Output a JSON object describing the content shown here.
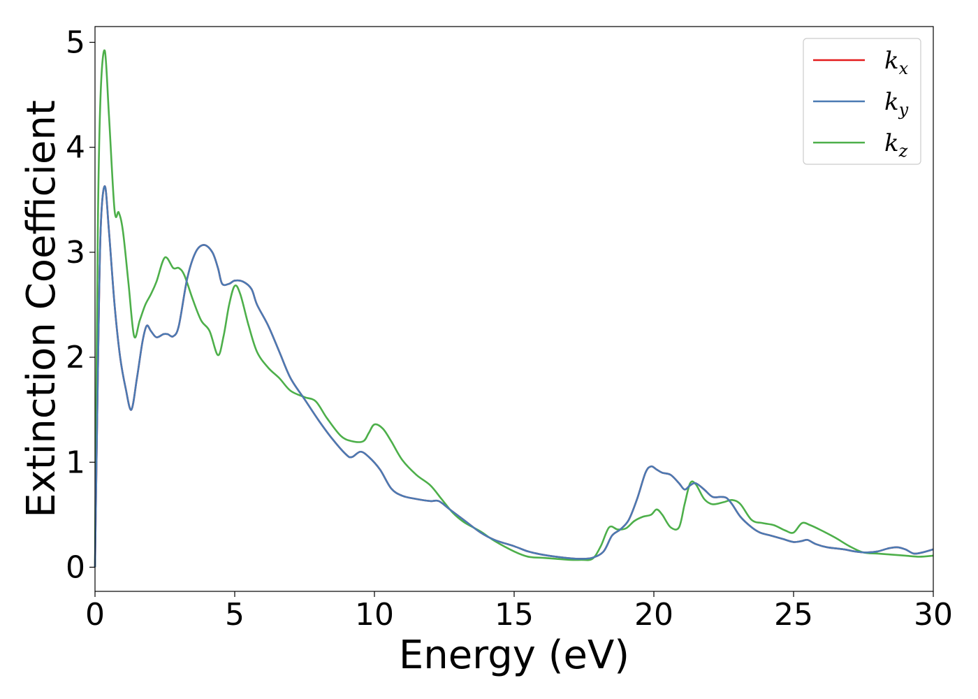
{
  "chart_data": {
    "type": "line",
    "title": "",
    "xlabel": "Energy (eV)",
    "ylabel": "Extinction Coefficient",
    "xlim": [
      0,
      30
    ],
    "ylim": [
      -0.23,
      5.15
    ],
    "xticks": [
      0,
      5,
      10,
      15,
      20,
      25,
      30
    ],
    "yticks": [
      0,
      1,
      2,
      3,
      4,
      5
    ],
    "grid": false,
    "legend": {
      "position": "top-right"
    },
    "series": [
      {
        "name": "k_x",
        "label_main": "k",
        "label_sub": "x",
        "color": "#e41a1c",
        "x": [
          0,
          0.1,
          0.2,
          0.35,
          0.5,
          0.7,
          0.9,
          1.1,
          1.3,
          1.5,
          1.7,
          1.85,
          2.0,
          2.2,
          2.45,
          2.6,
          2.8,
          3.0,
          3.3,
          3.6,
          3.9,
          4.2,
          4.4,
          4.55,
          4.8,
          5.0,
          5.3,
          5.6,
          5.8,
          6.2,
          6.6,
          7.0,
          7.5,
          8.0,
          8.5,
          9.0,
          9.2,
          9.5,
          9.8,
          10.2,
          10.6,
          11.0,
          11.5,
          12.0,
          12.3,
          12.7,
          13.2,
          13.8,
          14.3,
          15.0,
          15.5,
          16.0,
          16.5,
          17.0,
          17.4,
          17.8,
          18.2,
          18.5,
          18.8,
          19.1,
          19.4,
          19.7,
          19.9,
          20.1,
          20.3,
          20.6,
          20.9,
          21.1,
          21.3,
          21.5,
          21.8,
          22.1,
          22.4,
          22.6,
          22.8,
          23.1,
          23.5,
          23.8,
          24.2,
          24.6,
          25.0,
          25.3,
          25.5,
          25.8,
          26.2,
          26.8,
          27.2,
          27.6,
          28.0,
          28.4,
          28.7,
          29.0,
          29.3,
          29.6,
          30.0
        ],
        "y": [
          0,
          1.8,
          3.2,
          3.63,
          3.2,
          2.5,
          2.0,
          1.7,
          1.5,
          1.8,
          2.15,
          2.3,
          2.25,
          2.19,
          2.22,
          2.22,
          2.2,
          2.3,
          2.75,
          3.0,
          3.07,
          3.0,
          2.85,
          2.7,
          2.7,
          2.73,
          2.72,
          2.65,
          2.5,
          2.3,
          2.05,
          1.8,
          1.6,
          1.4,
          1.22,
          1.07,
          1.05,
          1.1,
          1.05,
          0.93,
          0.75,
          0.68,
          0.65,
          0.63,
          0.63,
          0.55,
          0.45,
          0.33,
          0.26,
          0.2,
          0.15,
          0.12,
          0.1,
          0.085,
          0.08,
          0.09,
          0.15,
          0.3,
          0.36,
          0.45,
          0.65,
          0.9,
          0.96,
          0.93,
          0.9,
          0.88,
          0.8,
          0.74,
          0.78,
          0.8,
          0.74,
          0.67,
          0.67,
          0.66,
          0.6,
          0.48,
          0.38,
          0.33,
          0.3,
          0.27,
          0.24,
          0.25,
          0.26,
          0.22,
          0.19,
          0.17,
          0.15,
          0.14,
          0.15,
          0.18,
          0.19,
          0.17,
          0.13,
          0.14,
          0.17
        ]
      },
      {
        "name": "k_y",
        "label_main": "k",
        "label_sub": "y",
        "color": "#4a7ab3",
        "x": [
          0,
          0.1,
          0.2,
          0.35,
          0.5,
          0.7,
          0.9,
          1.1,
          1.3,
          1.5,
          1.7,
          1.85,
          2.0,
          2.2,
          2.45,
          2.6,
          2.8,
          3.0,
          3.3,
          3.6,
          3.9,
          4.2,
          4.4,
          4.55,
          4.8,
          5.0,
          5.3,
          5.6,
          5.8,
          6.2,
          6.6,
          7.0,
          7.5,
          8.0,
          8.5,
          9.0,
          9.2,
          9.5,
          9.8,
          10.2,
          10.6,
          11.0,
          11.5,
          12.0,
          12.3,
          12.7,
          13.2,
          13.8,
          14.3,
          15.0,
          15.5,
          16.0,
          16.5,
          17.0,
          17.4,
          17.8,
          18.2,
          18.5,
          18.8,
          19.1,
          19.4,
          19.7,
          19.9,
          20.1,
          20.3,
          20.6,
          20.9,
          21.1,
          21.3,
          21.5,
          21.8,
          22.1,
          22.4,
          22.6,
          22.8,
          23.1,
          23.5,
          23.8,
          24.2,
          24.6,
          25.0,
          25.3,
          25.5,
          25.8,
          26.2,
          26.8,
          27.2,
          27.6,
          28.0,
          28.4,
          28.7,
          29.0,
          29.3,
          29.6,
          30.0
        ],
        "y": [
          0,
          1.8,
          3.2,
          3.63,
          3.2,
          2.5,
          2.0,
          1.7,
          1.5,
          1.8,
          2.15,
          2.3,
          2.25,
          2.19,
          2.22,
          2.22,
          2.2,
          2.3,
          2.75,
          3.0,
          3.07,
          3.0,
          2.85,
          2.7,
          2.7,
          2.73,
          2.72,
          2.65,
          2.5,
          2.3,
          2.05,
          1.8,
          1.6,
          1.4,
          1.22,
          1.07,
          1.05,
          1.1,
          1.05,
          0.93,
          0.75,
          0.68,
          0.65,
          0.63,
          0.63,
          0.55,
          0.45,
          0.33,
          0.26,
          0.2,
          0.15,
          0.12,
          0.1,
          0.085,
          0.08,
          0.09,
          0.15,
          0.3,
          0.36,
          0.45,
          0.65,
          0.9,
          0.96,
          0.93,
          0.9,
          0.88,
          0.8,
          0.74,
          0.78,
          0.8,
          0.74,
          0.67,
          0.67,
          0.66,
          0.6,
          0.48,
          0.38,
          0.33,
          0.3,
          0.27,
          0.24,
          0.25,
          0.26,
          0.22,
          0.19,
          0.17,
          0.15,
          0.14,
          0.15,
          0.18,
          0.19,
          0.17,
          0.13,
          0.14,
          0.17
        ]
      },
      {
        "name": "k_z",
        "label_main": "k",
        "label_sub": "z",
        "color": "#4daf4a",
        "x": [
          0,
          0.1,
          0.2,
          0.35,
          0.5,
          0.7,
          0.85,
          1.0,
          1.2,
          1.4,
          1.6,
          1.8,
          2.0,
          2.2,
          2.5,
          2.8,
          3.0,
          3.2,
          3.5,
          3.8,
          4.1,
          4.4,
          4.6,
          4.8,
          5.0,
          5.2,
          5.5,
          5.8,
          6.2,
          6.6,
          7.0,
          7.5,
          7.9,
          8.3,
          8.8,
          9.2,
          9.6,
          9.8,
          10.0,
          10.3,
          10.6,
          11.0,
          11.5,
          12.0,
          12.4,
          12.8,
          13.2,
          13.8,
          14.3,
          15.0,
          15.5,
          16.0,
          16.5,
          17.0,
          17.4,
          17.8,
          18.1,
          18.4,
          18.7,
          19.0,
          19.3,
          19.6,
          19.9,
          20.1,
          20.3,
          20.6,
          20.9,
          21.1,
          21.3,
          21.5,
          21.8,
          22.1,
          22.5,
          22.8,
          23.1,
          23.5,
          23.9,
          24.3,
          24.7,
          25.0,
          25.3,
          25.6,
          26.0,
          26.5,
          27.0,
          27.5,
          28.0,
          28.5,
          29.0,
          29.5,
          30.0
        ],
        "y": [
          0,
          3.2,
          4.5,
          4.92,
          4.3,
          3.4,
          3.38,
          3.2,
          2.7,
          2.2,
          2.35,
          2.5,
          2.6,
          2.72,
          2.95,
          2.85,
          2.85,
          2.78,
          2.55,
          2.35,
          2.25,
          2.02,
          2.2,
          2.5,
          2.68,
          2.6,
          2.3,
          2.05,
          1.9,
          1.8,
          1.68,
          1.62,
          1.58,
          1.42,
          1.25,
          1.2,
          1.2,
          1.28,
          1.36,
          1.32,
          1.2,
          1.02,
          0.88,
          0.78,
          0.65,
          0.52,
          0.43,
          0.34,
          0.25,
          0.15,
          0.1,
          0.09,
          0.08,
          0.07,
          0.07,
          0.08,
          0.2,
          0.38,
          0.36,
          0.37,
          0.44,
          0.48,
          0.5,
          0.55,
          0.5,
          0.38,
          0.38,
          0.6,
          0.8,
          0.79,
          0.65,
          0.6,
          0.62,
          0.64,
          0.6,
          0.45,
          0.42,
          0.4,
          0.35,
          0.33,
          0.42,
          0.4,
          0.35,
          0.28,
          0.2,
          0.14,
          0.13,
          0.12,
          0.11,
          0.1,
          0.11
        ]
      }
    ]
  }
}
